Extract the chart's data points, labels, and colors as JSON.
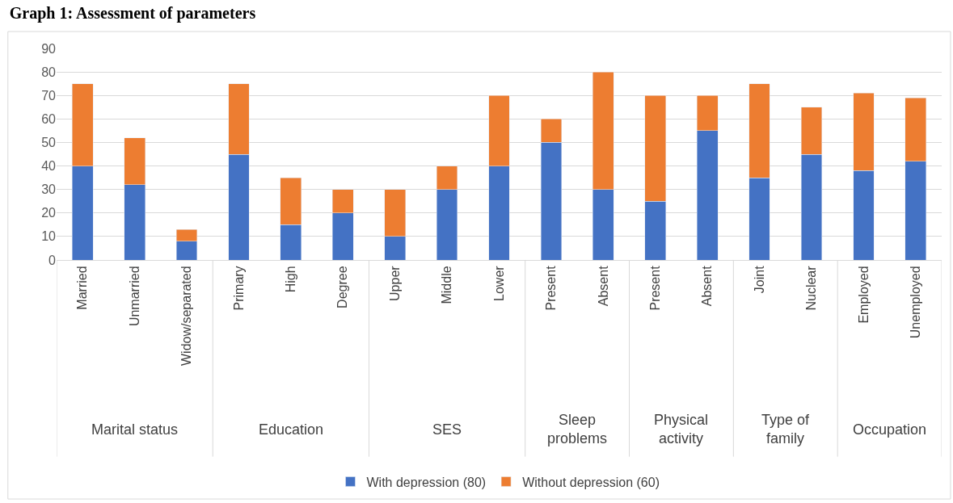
{
  "chart_data": {
    "type": "bar",
    "title": "Graph 1: Assessment of parameters",
    "categories": [
      "Married",
      "Unmarried",
      "Widow/separated",
      "Primary",
      "High",
      "Degree",
      "Upper",
      "Middle",
      "Lower",
      "Present",
      "Absent",
      "Present",
      "Absent",
      "Joint",
      "Nuclear",
      "Employed",
      "Unemployed"
    ],
    "series": [
      {
        "name": "With depression (80)",
        "color": "#4472c4",
        "values": [
          40,
          32,
          8,
          45,
          15,
          20,
          10,
          30,
          40,
          50,
          30,
          25,
          55,
          35,
          45,
          38,
          42
        ]
      },
      {
        "name": "Without depression (60)",
        "color": "#ed7d31",
        "values": [
          35,
          20,
          5,
          30,
          20,
          10,
          20,
          10,
          30,
          10,
          50,
          45,
          15,
          40,
          20,
          33,
          27
        ]
      }
    ],
    "stacked": true,
    "ylim": [
      0,
      90
    ],
    "yticks": [
      0,
      10,
      20,
      30,
      40,
      50,
      60,
      70,
      80,
      90
    ],
    "grid": "y",
    "legend": "bottom",
    "annotations": [
      "Marital status",
      "Education",
      "SES",
      "Sleep problems",
      "Physical activity",
      "Type of family",
      "Occupation"
    ]
  }
}
